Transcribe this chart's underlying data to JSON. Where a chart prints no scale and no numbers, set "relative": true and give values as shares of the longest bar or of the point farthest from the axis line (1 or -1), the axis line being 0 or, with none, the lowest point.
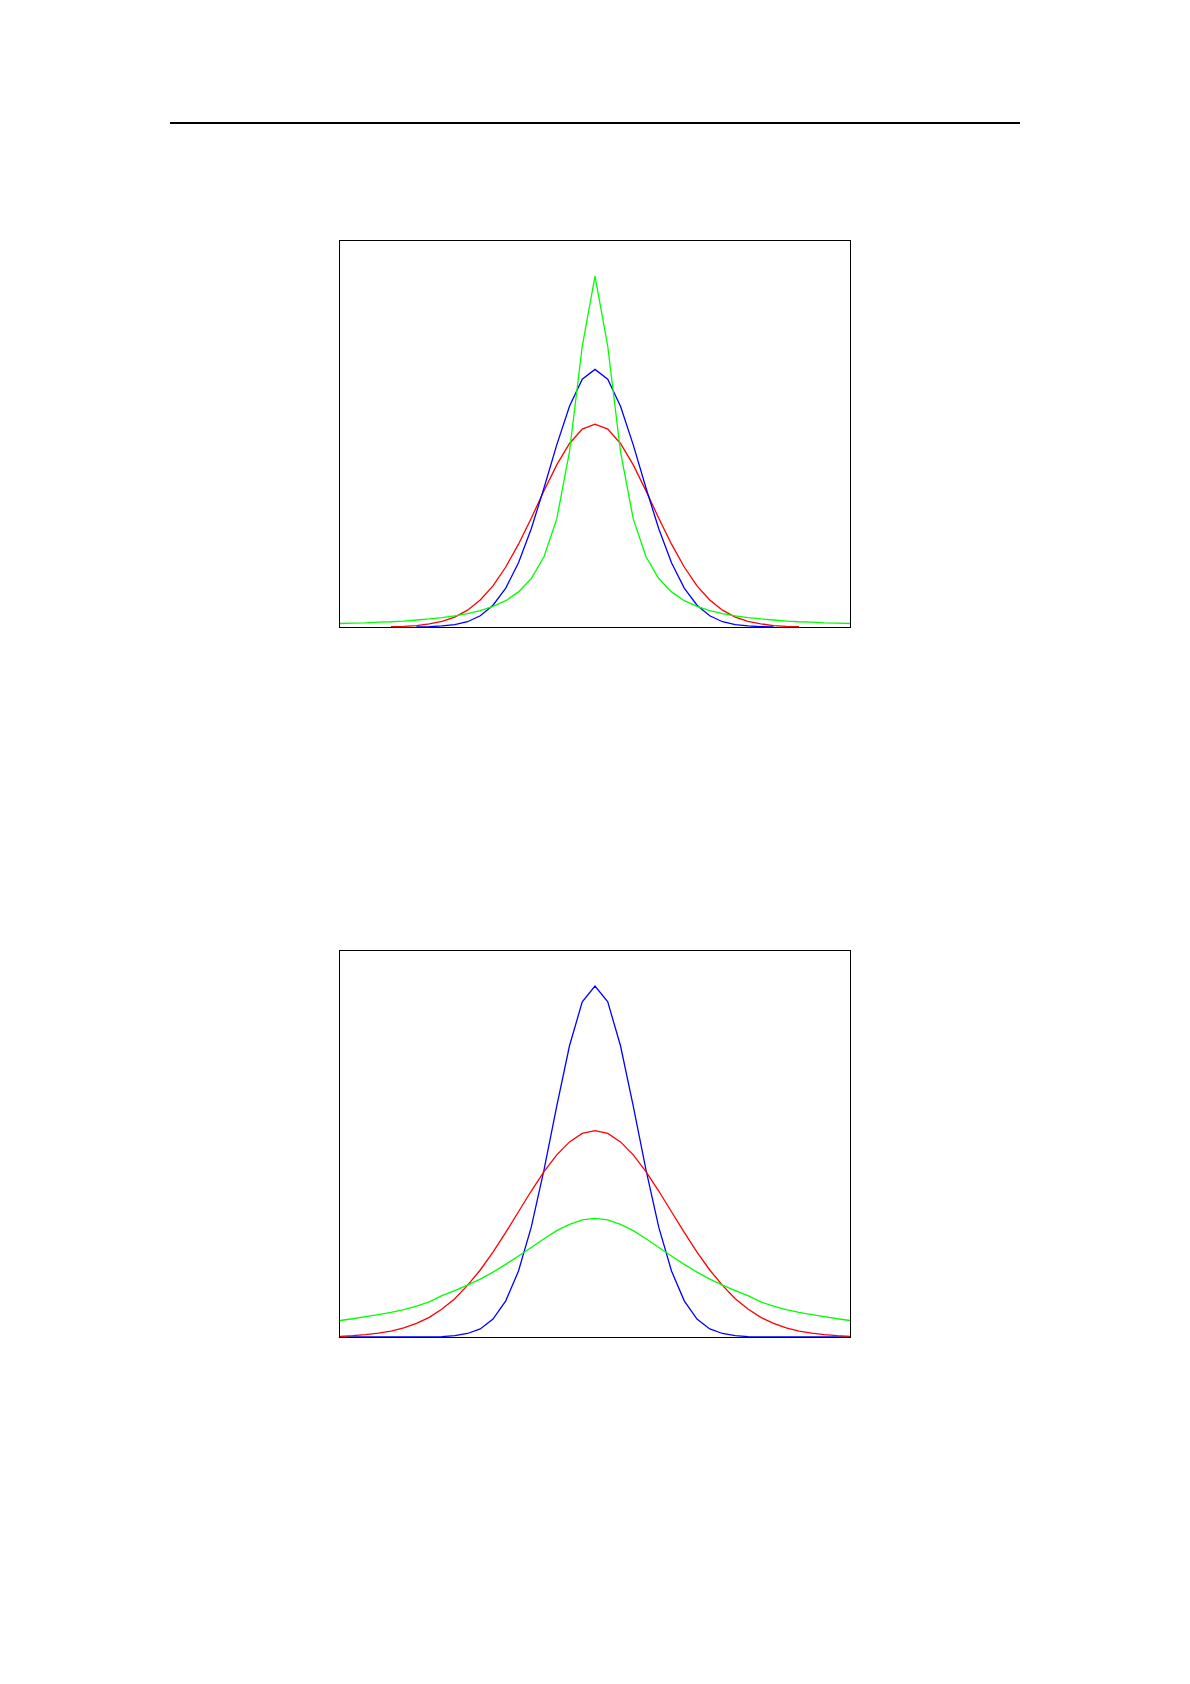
{
  "chart_data": [
    {
      "type": "line",
      "relative": true,
      "categories": [
        null,
        null,
        null,
        null,
        null,
        null,
        null,
        null,
        null,
        null,
        null,
        null,
        null,
        null,
        null,
        null,
        null,
        null,
        null,
        null,
        null,
        null,
        null,
        null,
        null,
        null,
        null,
        null,
        null,
        null,
        null,
        null,
        null,
        null,
        null,
        null,
        null,
        null,
        null,
        null,
        null
      ],
      "series": [
        {
          "color": "#ff0000",
          "values": [
            null,
            null,
            null,
            null,
            0.001,
            0.002,
            0.004,
            0.009,
            0.016,
            0.028,
            0.048,
            0.077,
            0.117,
            0.171,
            0.236,
            0.31,
            0.388,
            0.462,
            0.523,
            0.564,
            0.578,
            0.564,
            0.523,
            0.462,
            0.388,
            0.31,
            0.236,
            0.171,
            0.117,
            0.077,
            0.048,
            0.028,
            0.016,
            0.009,
            0.004,
            0.002,
            0.001,
            null,
            null,
            null,
            null
          ]
        },
        {
          "color": "#0000ff",
          "values": [
            null,
            null,
            null,
            null,
            null,
            null,
            0,
            0.001,
            0.003,
            0.007,
            0.015,
            0.032,
            0.062,
            0.111,
            0.183,
            0.28,
            0.396,
            0.519,
            0.629,
            0.706,
            0.734,
            0.706,
            0.629,
            0.519,
            0.396,
            0.28,
            0.183,
            0.111,
            0.062,
            0.032,
            0.015,
            0.007,
            0.003,
            0.001,
            0,
            null,
            null,
            null,
            null,
            null,
            null
          ]
        },
        {
          "color": "#00ff00",
          "values": [
            0.01,
            0.011,
            0.012,
            0.014,
            0.015,
            0.017,
            0.02,
            0.023,
            0.027,
            0.032,
            0.038,
            0.047,
            0.059,
            0.075,
            0.1,
            0.138,
            0.2,
            0.308,
            0.5,
            0.8,
            1,
            0.8,
            0.5,
            0.308,
            0.2,
            0.138,
            0.1,
            0.075,
            0.059,
            0.047,
            0.038,
            0.032,
            0.027,
            0.023,
            0.02,
            0.017,
            0.015,
            0.014,
            0.012,
            0.011,
            0.01
          ]
        }
      ]
    },
    {
      "type": "line",
      "relative": true,
      "categories": [
        null,
        null,
        null,
        null,
        null,
        null,
        null,
        null,
        null,
        null,
        null,
        null,
        null,
        null,
        null,
        null,
        null,
        null,
        null,
        null,
        null,
        null,
        null,
        null,
        null,
        null,
        null,
        null,
        null,
        null,
        null,
        null,
        null,
        null,
        null,
        null,
        null,
        null,
        null,
        null,
        null
      ],
      "series": [
        {
          "color": "#0000ff",
          "values": [
            0,
            0,
            0,
            0,
            0,
            0,
            0,
            0,
            0.001,
            0.004,
            0.01,
            0.023,
            0.051,
            0.103,
            0.188,
            0.313,
            0.476,
            0.658,
            0.83,
            0.955,
            1,
            0.955,
            0.83,
            0.658,
            0.476,
            0.313,
            0.188,
            0.103,
            0.051,
            0.023,
            0.01,
            0.004,
            0.001,
            0,
            0,
            0,
            0,
            0,
            0,
            0,
            0
          ]
        },
        {
          "color": "#ff0000",
          "values": [
            0.002,
            0.004,
            0.007,
            0.011,
            0.017,
            0.026,
            0.039,
            0.056,
            0.08,
            0.109,
            0.147,
            0.191,
            0.242,
            0.298,
            0.357,
            0.416,
            0.471,
            0.519,
            0.556,
            0.58,
            0.588,
            0.58,
            0.556,
            0.519,
            0.471,
            0.416,
            0.357,
            0.298,
            0.242,
            0.191,
            0.147,
            0.109,
            0.08,
            0.056,
            0.039,
            0.026,
            0.017,
            0.011,
            0.007,
            0.004,
            0.002
          ]
        },
        {
          "color": "#00ff00",
          "values": [
            0.047,
            0.052,
            0.058,
            0.064,
            0.07,
            0.078,
            0.088,
            0.1,
            0.118,
            0.132,
            0.148,
            0.165,
            0.185,
            0.207,
            0.231,
            0.255,
            0.28,
            0.303,
            0.321,
            0.334,
            0.338,
            0.334,
            0.321,
            0.303,
            0.28,
            0.255,
            0.231,
            0.207,
            0.185,
            0.165,
            0.148,
            0.132,
            0.118,
            0.1,
            0.088,
            0.078,
            0.07,
            0.064,
            0.058,
            0.052,
            0.047
          ]
        }
      ]
    }
  ]
}
